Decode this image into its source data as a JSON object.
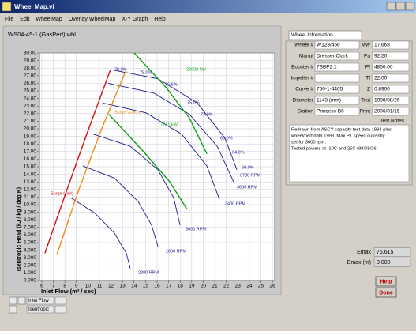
{
  "window": {
    "title": "Wheel Map.vi",
    "menu": [
      "File",
      "Edit",
      "WheelMap",
      "Overlay WheelMap",
      "X-Y Graph",
      "Help"
    ]
  },
  "chart_data": {
    "type": "line",
    "title": "WS04-45-1 (GasPerf).whl",
    "x_label": "Inlet Flow (m³ / sec)",
    "y_label": "Isentropic Head (kJ / kg / deg K)",
    "xlim": [
      5.8,
      26.2
    ],
    "ylim": [
      0,
      30
    ],
    "xticks": [
      6,
      7,
      8,
      9,
      10,
      11,
      12,
      13,
      14,
      15,
      16,
      17,
      18,
      19,
      20,
      21,
      22,
      23,
      24,
      25,
      26
    ],
    "yticks": [
      {
        "value": 0,
        "label": "0.000"
      },
      {
        "value": 1,
        "label": "1.000"
      },
      {
        "value": 2,
        "label": "2.000"
      },
      {
        "value": 3,
        "label": "3.000"
      },
      {
        "value": 4,
        "label": "4.000"
      },
      {
        "value": 5,
        "label": "5.000"
      },
      {
        "value": 6,
        "label": "6.000"
      },
      {
        "value": 7,
        "label": "7.000"
      },
      {
        "value": 8,
        "label": "8.000"
      },
      {
        "value": 9,
        "label": "9.000"
      },
      {
        "value": 10,
        "label": "10.00"
      },
      {
        "value": 11,
        "label": "11.00"
      },
      {
        "value": 12,
        "label": "12.00"
      },
      {
        "value": 13,
        "label": "13.00"
      },
      {
        "value": 14,
        "label": "14.00"
      },
      {
        "value": 15,
        "label": "15.00"
      },
      {
        "value": 16,
        "label": "16.00"
      },
      {
        "value": 17,
        "label": "17.00"
      },
      {
        "value": 18,
        "label": "18.00"
      },
      {
        "value": 19,
        "label": "19.00"
      },
      {
        "value": 20,
        "label": "20.00"
      },
      {
        "value": 21,
        "label": "21.00"
      },
      {
        "value": 22,
        "label": "22.00"
      },
      {
        "value": 23,
        "label": "23.00"
      },
      {
        "value": 24,
        "label": "24.00"
      },
      {
        "value": 25,
        "label": "25.00"
      },
      {
        "value": 26,
        "label": "26.00"
      },
      {
        "value": 27,
        "label": "27.00"
      },
      {
        "value": 28,
        "label": "28.00"
      },
      {
        "value": 29,
        "label": "29.00"
      },
      {
        "value": 30,
        "label": "30.00"
      }
    ],
    "grid": true,
    "series": [
      {
        "name": "3780 RPM",
        "color": "#1a1a8c",
        "x": [
          11.96,
          16.07,
          19.49,
          21.89,
          22.92
        ],
        "values": [
          27.8,
          26.6,
          23.4,
          18.75,
          14.6
        ]
      },
      {
        "name": "3600 RPM",
        "color": "#1a1a8c",
        "x": [
          11.75,
          15.73,
          18.81,
          21.21,
          22.64
        ],
        "values": [
          26.0,
          24.7,
          21.9,
          17.7,
          13.0
        ]
      },
      {
        "name": "3400 RPM",
        "color": "#1a1a8c",
        "x": [
          11.27,
          15.04,
          18.12,
          20.32,
          21.41
        ],
        "values": [
          23.4,
          22.1,
          19.3,
          15.1,
          10.7
        ]
      },
      {
        "name": "3000 RPM",
        "color": "#1a1a8c",
        "x": [
          10.45,
          13.67,
          16.07,
          17.44,
          17.99
        ],
        "values": [
          19.3,
          17.7,
          14.6,
          10.9,
          7.3
        ]
      },
      {
        "name": "2600 RPM",
        "color": "#1a1a8c",
        "x": [
          9.56,
          12.3,
          14.36,
          15.52,
          16.07
        ],
        "values": [
          15.1,
          13.5,
          10.4,
          7.3,
          4.5
        ]
      },
      {
        "name": "2200 RPM",
        "color": "#1a1a8c",
        "x": [
          8.53,
          10.59,
          12.3,
          13.33,
          13.67
        ],
        "values": [
          10.9,
          8.9,
          6.25,
          3.6,
          1.6
        ]
      },
      {
        "name": "Surge Limit",
        "color": "#d01010",
        "x": [
          6.27,
          8.19,
          9.9,
          11.96
        ],
        "values": [
          3.6,
          12.0,
          19.3,
          27.8
        ]
      },
      {
        "name": "Surge Control",
        "color": "#f08a10",
        "x": [
          7.3,
          9.22,
          11.14,
          13.33
        ],
        "values": [
          3.4,
          12.0,
          19.8,
          27.8
        ]
      },
      {
        "name": "22000 kW",
        "color": "#10a010",
        "x": [
          14.01,
          16.75,
          18.81,
          20.32
        ],
        "values": [
          30.0,
          25.5,
          21.4,
          16.7
        ]
      },
      {
        "name": "17241 kW",
        "color": "#10a010",
        "x": [
          11.82,
          14.7,
          17.1,
          18.6
        ],
        "values": [
          21.9,
          17.2,
          13.0,
          9.4
        ]
      }
    ],
    "annotations": [
      "70.0%",
      "75.0%",
      "76.6%",
      "75.0%",
      "73.0%",
      "66.0%",
      "64.0%",
      "60.0%"
    ]
  },
  "wheel_info": {
    "title": "Wheel Information",
    "left_fields": [
      {
        "label": "Wheel #",
        "value": "W123/456"
      },
      {
        "label": "Manuf",
        "value": "Dresser Clark"
      },
      {
        "label": "Booster #",
        "value": "7SBP2.1"
      },
      {
        "label": "Impeller #"
      },
      {
        "label": "Curve #",
        "value": "750-1-4405"
      },
      {
        "label": "Diameter",
        "value": "1143 (mm)"
      },
      {
        "label": "Station",
        "value": "Princess B6"
      }
    ],
    "right_fields": [
      {
        "label": "MW",
        "value": "17.668"
      },
      {
        "label": "Pa",
        "value": "92.20"
      },
      {
        "label": "Pf",
        "value": "4850.00"
      },
      {
        "label": "Tf",
        "value": "22.00"
      },
      {
        "label": "Z",
        "value": "0.8900"
      },
      {
        "label": "Test",
        "value": "1998/08/26"
      },
      {
        "label": "Print",
        "value": "2006/01/15"
      }
    ],
    "notes_label": "Test Notes",
    "notes": [
      "Redrawn from ASCY capacity test data 1994 plus",
      "wheel/perf data 1998.  Max PT speed currently",
      "set for 3600 rpm.",
      "Tested powers at -10C and 25C (98/08/26)"
    ]
  },
  "emax": [
    {
      "label": "Emax",
      "value": "76.615"
    },
    {
      "label": "Emax (m)",
      "value": "0.000"
    }
  ],
  "buttons": [
    "Help",
    "Done"
  ],
  "legend": [
    "Inlet Flow",
    "Isentropic"
  ]
}
